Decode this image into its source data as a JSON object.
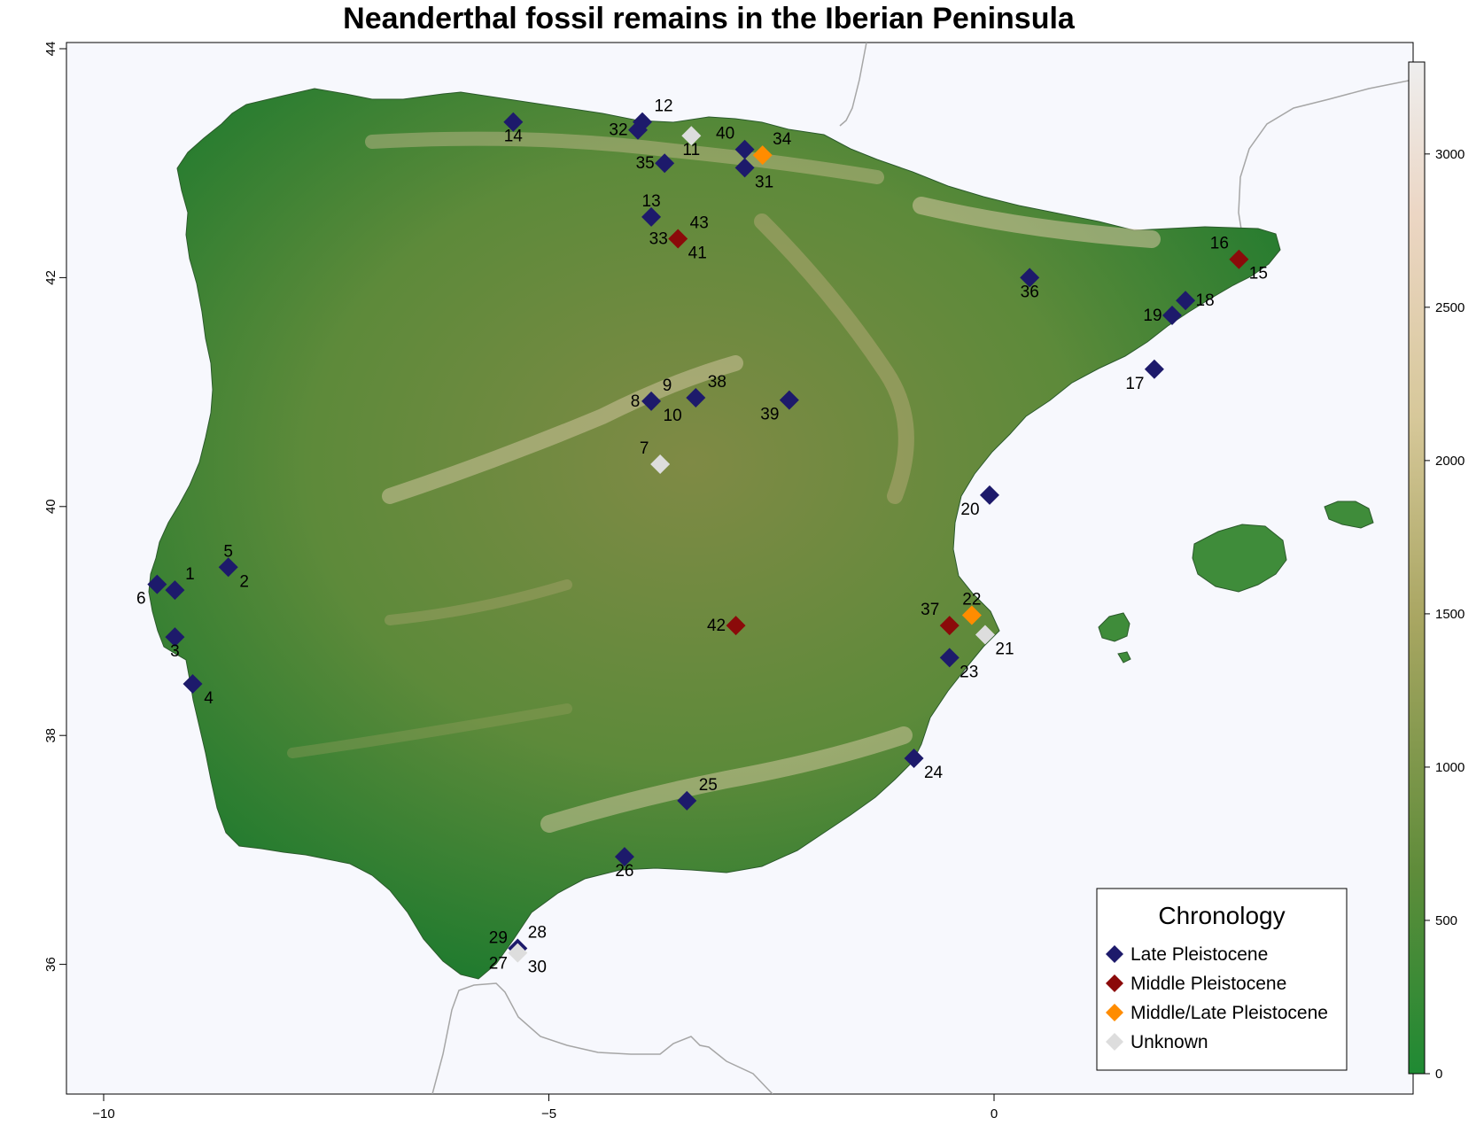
{
  "title": "Neanderthal fossil remains in the Iberian Peninsula",
  "colors": {
    "sea": "#f7f8fd",
    "late": "#1d1a6b",
    "middle": "#8b0a0a",
    "middle_late": "#ff8c00",
    "unknown": "#dddddd",
    "relief_low": "#1a7a2e",
    "relief_mid": "#7a8a40",
    "relief_high": "#d8c8a0"
  },
  "axes": {
    "x_ticks": [
      "−10",
      "−5",
      "0"
    ],
    "y_ticks": [
      "36",
      "38",
      "40",
      "42",
      "44"
    ]
  },
  "colorbar": {
    "ticks": [
      "0",
      "500",
      "1000",
      "1500",
      "2000",
      "2500",
      "3000"
    ],
    "range": [
      0,
      3300
    ]
  },
  "legend": {
    "title": "Chronology",
    "items": [
      {
        "label": "Late Pleistocene",
        "color_key": "late"
      },
      {
        "label": "Middle Pleistocene",
        "color_key": "middle"
      },
      {
        "label": "Middle/Late Pleistocene",
        "color_key": "middle_late"
      },
      {
        "label": "Unknown",
        "color_key": "unknown"
      }
    ]
  },
  "chart_data": {
    "type": "scatter",
    "title": "Neanderthal fossil remains in the Iberian Peninsula",
    "xlim": [
      -10.2,
      4.8
    ],
    "ylim": [
      35.0,
      44.05
    ],
    "grid": false,
    "legend_position": "bottom-right",
    "sites": [
      {
        "ids": [
          "1"
        ],
        "lon": -9.2,
        "lat": 39.27,
        "chronology": "late"
      },
      {
        "ids": [
          "5",
          "2"
        ],
        "lon": -8.6,
        "lat": 39.47,
        "chronology": "late"
      },
      {
        "ids": [
          "6"
        ],
        "lon": -9.4,
        "lat": 39.32,
        "chronology": "late"
      },
      {
        "ids": [
          "3"
        ],
        "lon": -9.2,
        "lat": 38.86,
        "chronology": "late"
      },
      {
        "ids": [
          "4"
        ],
        "lon": -9.0,
        "lat": 38.45,
        "chronology": "late"
      },
      {
        "ids": [
          "7"
        ],
        "lon": -3.75,
        "lat": 40.37,
        "chronology": "unknown"
      },
      {
        "ids": [
          "8",
          "9",
          "10"
        ],
        "lon": -3.85,
        "lat": 40.92,
        "chronology": "late"
      },
      {
        "ids": [
          "38"
        ],
        "lon": -3.35,
        "lat": 40.95,
        "chronology": "late"
      },
      {
        "ids": [
          "39"
        ],
        "lon": -2.3,
        "lat": 40.93,
        "chronology": "late"
      },
      {
        "ids": [
          "11"
        ],
        "lon": -3.4,
        "lat": 43.24,
        "chronology": "unknown"
      },
      {
        "ids": [
          "12"
        ],
        "lon": -3.95,
        "lat": 43.36,
        "chronology": "late"
      },
      {
        "ids": [
          "32"
        ],
        "lon": -4.0,
        "lat": 43.29,
        "chronology": "late"
      },
      {
        "ids": [
          "35"
        ],
        "lon": -3.7,
        "lat": 43.0,
        "chronology": "late"
      },
      {
        "ids": [
          "14"
        ],
        "lon": -5.4,
        "lat": 43.36,
        "chronology": "late"
      },
      {
        "ids": [
          "40"
        ],
        "lon": -2.8,
        "lat": 43.12,
        "chronology": "late"
      },
      {
        "ids": [
          "34"
        ],
        "lon": -2.6,
        "lat": 43.07,
        "chronology": "middle_late"
      },
      {
        "ids": [
          "31"
        ],
        "lon": -2.8,
        "lat": 42.96,
        "chronology": "late"
      },
      {
        "ids": [
          "13"
        ],
        "lon": -3.85,
        "lat": 42.53,
        "chronology": "late"
      },
      {
        "ids": [
          "33",
          "43",
          "41"
        ],
        "lon": -3.55,
        "lat": 42.34,
        "chronology": "middle"
      },
      {
        "ids": [
          "36"
        ],
        "lon": 0.4,
        "lat": 42.0,
        "chronology": "late"
      },
      {
        "ids": [
          "16",
          "15"
        ],
        "lon": 2.75,
        "lat": 42.16,
        "chronology": "middle"
      },
      {
        "ids": [
          "18"
        ],
        "lon": 2.15,
        "lat": 41.8,
        "chronology": "late"
      },
      {
        "ids": [
          "19"
        ],
        "lon": 2.0,
        "lat": 41.67,
        "chronology": "late"
      },
      {
        "ids": [
          "17"
        ],
        "lon": 1.8,
        "lat": 41.2,
        "chronology": "late"
      },
      {
        "ids": [
          "20"
        ],
        "lon": -0.05,
        "lat": 40.1,
        "chronology": "late"
      },
      {
        "ids": [
          "42"
        ],
        "lon": -2.9,
        "lat": 38.96,
        "chronology": "middle"
      },
      {
        "ids": [
          "37"
        ],
        "lon": -0.5,
        "lat": 38.96,
        "chronology": "middle"
      },
      {
        "ids": [
          "22"
        ],
        "lon": -0.25,
        "lat": 39.05,
        "chronology": "middle_late"
      },
      {
        "ids": [
          "21"
        ],
        "lon": -0.1,
        "lat": 38.88,
        "chronology": "unknown"
      },
      {
        "ids": [
          "23"
        ],
        "lon": -0.5,
        "lat": 38.68,
        "chronology": "late"
      },
      {
        "ids": [
          "24"
        ],
        "lon": -0.9,
        "lat": 37.8,
        "chronology": "late"
      },
      {
        "ids": [
          "25"
        ],
        "lon": -3.45,
        "lat": 37.43,
        "chronology": "late"
      },
      {
        "ids": [
          "26"
        ],
        "lon": -4.15,
        "lat": 36.94,
        "chronology": "late"
      },
      {
        "ids": [
          "29",
          "28"
        ],
        "lon": -5.35,
        "lat": 36.14,
        "chronology": "late"
      },
      {
        "ids": [
          "27",
          "30"
        ],
        "lon": -5.35,
        "lat": 36.1,
        "chronology": "unknown"
      }
    ]
  }
}
